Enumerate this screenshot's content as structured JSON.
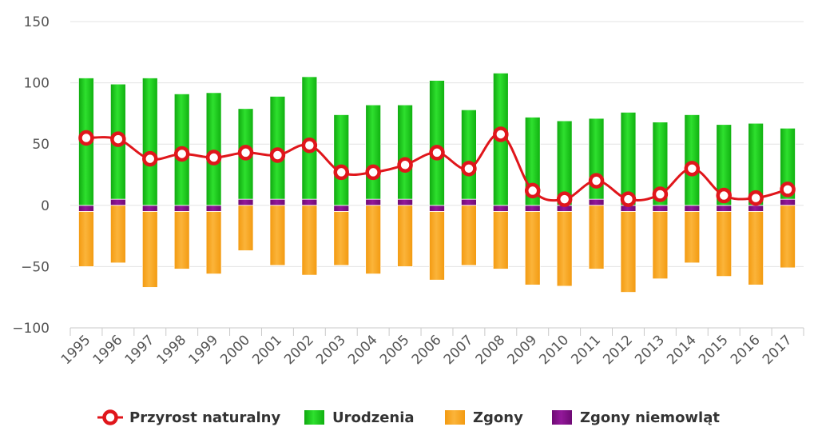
{
  "chart_data": {
    "type": "bar",
    "categories": [
      "1995",
      "1996",
      "1997",
      "1998",
      "1999",
      "2000",
      "2001",
      "2002",
      "2003",
      "2004",
      "2005",
      "2006",
      "2007",
      "2008",
      "2009",
      "2010",
      "2011",
      "2012",
      "2013",
      "2014",
      "2015",
      "2016",
      "2017"
    ],
    "ylim": [
      -100,
      150
    ],
    "yticks": [
      -100,
      -50,
      0,
      50,
      100,
      150
    ],
    "grid": true,
    "legend_position": "bottom",
    "series": [
      {
        "name": "Przyrost naturalny",
        "type": "line",
        "color": "#e0161b",
        "values": [
          55,
          54,
          38,
          42,
          39,
          43,
          41,
          49,
          27,
          27,
          33,
          43,
          30,
          58,
          12,
          5,
          20,
          5,
          9,
          30,
          8,
          6,
          13
        ]
      },
      {
        "name": "Urodzenia",
        "type": "bar",
        "color": "#17c817",
        "values": [
          104,
          99,
          104,
          91,
          92,
          79,
          89,
          105,
          74,
          82,
          82,
          102,
          78,
          108,
          72,
          69,
          71,
          76,
          68,
          74,
          66,
          67,
          63
        ]
      },
      {
        "name": "Zgony",
        "type": "bar",
        "color": "#f5a214",
        "values": [
          -50,
          -47,
          -67,
          -52,
          -56,
          -37,
          -49,
          -57,
          -49,
          -56,
          -50,
          -61,
          -49,
          -52,
          -65,
          -66,
          -52,
          -71,
          -60,
          -47,
          -58,
          -65,
          -51
        ]
      },
      {
        "name": "Zgony niemowląt",
        "type": "bar",
        "color": "#7d0f82",
        "values": [
          -5,
          5,
          -5,
          -5,
          -5,
          5,
          5,
          5,
          -5,
          5,
          5,
          -5,
          5,
          -5,
          -5,
          -5,
          5,
          -5,
          -5,
          -5,
          -5,
          -5,
          5
        ]
      }
    ]
  }
}
